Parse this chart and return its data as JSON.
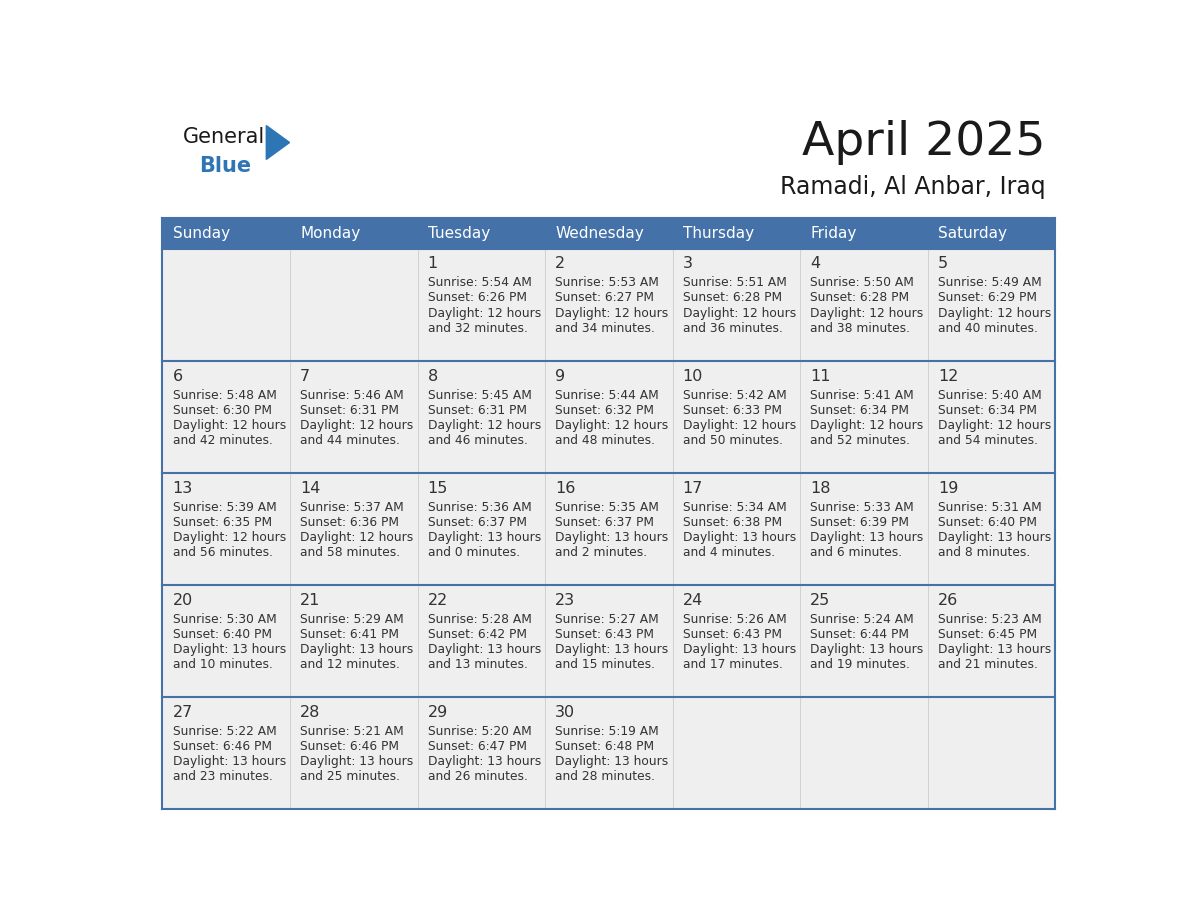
{
  "title": "April 2025",
  "subtitle": "Ramadi, Al Anbar, Iraq",
  "header_color": "#4472A8",
  "header_text_color": "#FFFFFF",
  "cell_bg_color": "#EFEFEF",
  "text_color": "#333333",
  "border_color": "#4472A8",
  "cell_border_color": "#CCCCCC",
  "days_of_week": [
    "Sunday",
    "Monday",
    "Tuesday",
    "Wednesday",
    "Thursday",
    "Friday",
    "Saturday"
  ],
  "logo_color": "#2E75B6",
  "logo_dark": "#1a1a1a",
  "calendar_data": [
    [
      {
        "day": "",
        "sunrise": "",
        "sunset": "",
        "daylight": ""
      },
      {
        "day": "",
        "sunrise": "",
        "sunset": "",
        "daylight": ""
      },
      {
        "day": "1",
        "sunrise": "5:54 AM",
        "sunset": "6:26 PM",
        "daylight": "12 hours and 32 minutes."
      },
      {
        "day": "2",
        "sunrise": "5:53 AM",
        "sunset": "6:27 PM",
        "daylight": "12 hours and 34 minutes."
      },
      {
        "day": "3",
        "sunrise": "5:51 AM",
        "sunset": "6:28 PM",
        "daylight": "12 hours and 36 minutes."
      },
      {
        "day": "4",
        "sunrise": "5:50 AM",
        "sunset": "6:28 PM",
        "daylight": "12 hours and 38 minutes."
      },
      {
        "day": "5",
        "sunrise": "5:49 AM",
        "sunset": "6:29 PM",
        "daylight": "12 hours and 40 minutes."
      }
    ],
    [
      {
        "day": "6",
        "sunrise": "5:48 AM",
        "sunset": "6:30 PM",
        "daylight": "12 hours and 42 minutes."
      },
      {
        "day": "7",
        "sunrise": "5:46 AM",
        "sunset": "6:31 PM",
        "daylight": "12 hours and 44 minutes."
      },
      {
        "day": "8",
        "sunrise": "5:45 AM",
        "sunset": "6:31 PM",
        "daylight": "12 hours and 46 minutes."
      },
      {
        "day": "9",
        "sunrise": "5:44 AM",
        "sunset": "6:32 PM",
        "daylight": "12 hours and 48 minutes."
      },
      {
        "day": "10",
        "sunrise": "5:42 AM",
        "sunset": "6:33 PM",
        "daylight": "12 hours and 50 minutes."
      },
      {
        "day": "11",
        "sunrise": "5:41 AM",
        "sunset": "6:34 PM",
        "daylight": "12 hours and 52 minutes."
      },
      {
        "day": "12",
        "sunrise": "5:40 AM",
        "sunset": "6:34 PM",
        "daylight": "12 hours and 54 minutes."
      }
    ],
    [
      {
        "day": "13",
        "sunrise": "5:39 AM",
        "sunset": "6:35 PM",
        "daylight": "12 hours and 56 minutes."
      },
      {
        "day": "14",
        "sunrise": "5:37 AM",
        "sunset": "6:36 PM",
        "daylight": "12 hours and 58 minutes."
      },
      {
        "day": "15",
        "sunrise": "5:36 AM",
        "sunset": "6:37 PM",
        "daylight": "13 hours and 0 minutes."
      },
      {
        "day": "16",
        "sunrise": "5:35 AM",
        "sunset": "6:37 PM",
        "daylight": "13 hours and 2 minutes."
      },
      {
        "day": "17",
        "sunrise": "5:34 AM",
        "sunset": "6:38 PM",
        "daylight": "13 hours and 4 minutes."
      },
      {
        "day": "18",
        "sunrise": "5:33 AM",
        "sunset": "6:39 PM",
        "daylight": "13 hours and 6 minutes."
      },
      {
        "day": "19",
        "sunrise": "5:31 AM",
        "sunset": "6:40 PM",
        "daylight": "13 hours and 8 minutes."
      }
    ],
    [
      {
        "day": "20",
        "sunrise": "5:30 AM",
        "sunset": "6:40 PM",
        "daylight": "13 hours and 10 minutes."
      },
      {
        "day": "21",
        "sunrise": "5:29 AM",
        "sunset": "6:41 PM",
        "daylight": "13 hours and 12 minutes."
      },
      {
        "day": "22",
        "sunrise": "5:28 AM",
        "sunset": "6:42 PM",
        "daylight": "13 hours and 13 minutes."
      },
      {
        "day": "23",
        "sunrise": "5:27 AM",
        "sunset": "6:43 PM",
        "daylight": "13 hours and 15 minutes."
      },
      {
        "day": "24",
        "sunrise": "5:26 AM",
        "sunset": "6:43 PM",
        "daylight": "13 hours and 17 minutes."
      },
      {
        "day": "25",
        "sunrise": "5:24 AM",
        "sunset": "6:44 PM",
        "daylight": "13 hours and 19 minutes."
      },
      {
        "day": "26",
        "sunrise": "5:23 AM",
        "sunset": "6:45 PM",
        "daylight": "13 hours and 21 minutes."
      }
    ],
    [
      {
        "day": "27",
        "sunrise": "5:22 AM",
        "sunset": "6:46 PM",
        "daylight": "13 hours and 23 minutes."
      },
      {
        "day": "28",
        "sunrise": "5:21 AM",
        "sunset": "6:46 PM",
        "daylight": "13 hours and 25 minutes."
      },
      {
        "day": "29",
        "sunrise": "5:20 AM",
        "sunset": "6:47 PM",
        "daylight": "13 hours and 26 minutes."
      },
      {
        "day": "30",
        "sunrise": "5:19 AM",
        "sunset": "6:48 PM",
        "daylight": "13 hours and 28 minutes."
      },
      {
        "day": "",
        "sunrise": "",
        "sunset": "",
        "daylight": ""
      },
      {
        "day": "",
        "sunrise": "",
        "sunset": "",
        "daylight": ""
      },
      {
        "day": "",
        "sunrise": "",
        "sunset": "",
        "daylight": ""
      }
    ]
  ],
  "fig_width": 11.88,
  "fig_height": 9.18,
  "dpi": 100
}
